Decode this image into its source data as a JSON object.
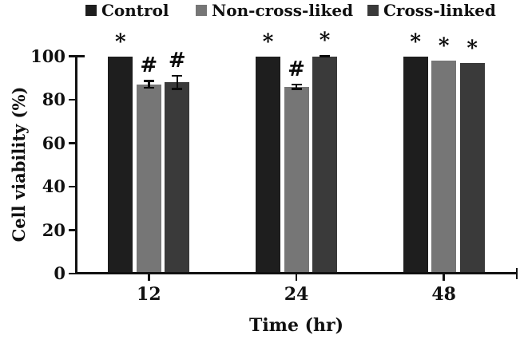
{
  "chart_data": {
    "type": "bar",
    "title": "",
    "xlabel": "Time (hr)",
    "ylabel": "Cell viability (%)",
    "categories": [
      "12",
      "24",
      "48"
    ],
    "series": [
      {
        "name": "Control",
        "color": "#1e1e1e",
        "values": [
          100,
          100,
          100
        ],
        "errors": [
          0,
          0,
          0
        ],
        "annotations": [
          "*",
          "*",
          "*"
        ]
      },
      {
        "name": "Non-cross-liked",
        "color": "#767676",
        "values": [
          87,
          86,
          98
        ],
        "errors": [
          2,
          1.5,
          0
        ],
        "annotations": [
          "#",
          "#",
          "*"
        ]
      },
      {
        "name": "Cross-linked",
        "color": "#3a3a3a",
        "values": [
          88,
          100,
          97
        ],
        "errors": [
          3.5,
          0.7,
          0
        ],
        "annotations": [
          "#",
          "*",
          "*"
        ]
      }
    ],
    "ylim": [
      0,
      100
    ],
    "yticks": [
      0,
      20,
      40,
      60,
      80,
      100
    ],
    "legend_position": "top",
    "grid": false
  }
}
